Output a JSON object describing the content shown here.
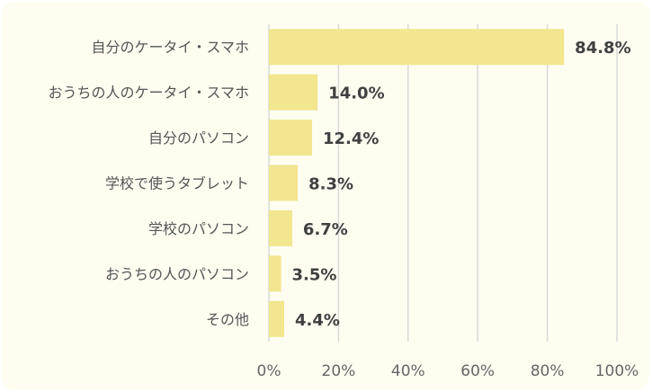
{
  "chart_data": {
    "type": "bar",
    "orientation": "horizontal",
    "categories": [
      "自分のケータイ・スマホ",
      "おうちの人のケータイ・スマホ",
      "自分のパソコン",
      "学校で使うタブレット",
      "学校のパソコン",
      "おうちの人のパソコン",
      "その他"
    ],
    "values": [
      84.8,
      14.0,
      12.4,
      8.3,
      6.7,
      3.5,
      4.4
    ],
    "value_labels": [
      "84.8%",
      "14.0%",
      "12.4%",
      "8.3%",
      "6.7%",
      "3.5%",
      "4.4%"
    ],
    "x_ticks": [
      "0%",
      "20%",
      "40%",
      "60%",
      "80%",
      "100%"
    ],
    "xlim": [
      0,
      100
    ],
    "grid": true,
    "legend": "none",
    "colors": {
      "bar": "#f2e68e",
      "grid": "#d9d9d9",
      "panel": "#fefdf0"
    }
  }
}
